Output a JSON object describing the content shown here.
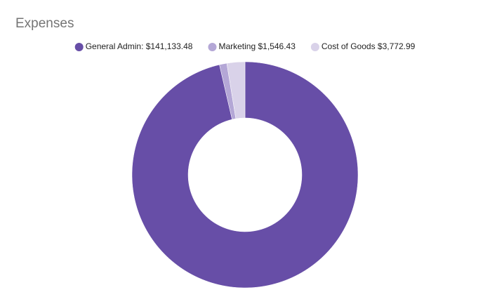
{
  "chart_data": {
    "type": "pie",
    "donut": true,
    "title": "Expenses",
    "categories": [
      "General Admin: $141,133.48",
      "Marketing $1,546.43",
      "Cost of Goods $3,772.99"
    ],
    "values": [
      141133.48,
      1546.43,
      3772.99
    ],
    "colors": [
      "#674ea7",
      "#b4a7d6",
      "#d9d2e9"
    ],
    "legend": "top"
  }
}
